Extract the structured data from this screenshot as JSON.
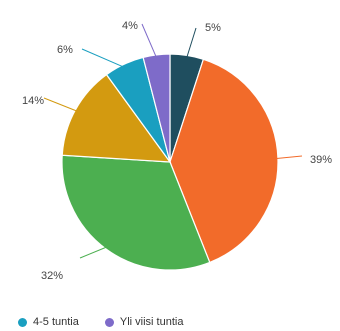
{
  "chart_data": {
    "type": "pie",
    "title": "",
    "slices": [
      {
        "label": "",
        "value": 5,
        "display": "5%",
        "color": "#1f4e5f"
      },
      {
        "label": "",
        "value": 39,
        "display": "39%",
        "color": "#f26b2a"
      },
      {
        "label": "",
        "value": 32,
        "display": "32%",
        "color": "#4caf50"
      },
      {
        "label": "",
        "value": 14,
        "display": "14%",
        "color": "#d39a10"
      },
      {
        "label": "4-5 tuntia",
        "value": 6,
        "display": "6%",
        "color": "#1a9fc0"
      },
      {
        "label": "Yli viisi tuntia",
        "value": 4,
        "display": "4%",
        "color": "#7e6bc9"
      }
    ],
    "legend": {
      "position": "bottom-left",
      "entries": [
        {
          "label": "4-5 tuntia",
          "color": "#1a9fc0"
        },
        {
          "label": "Yli viisi tuntia",
          "color": "#7e6bc9"
        }
      ]
    }
  }
}
